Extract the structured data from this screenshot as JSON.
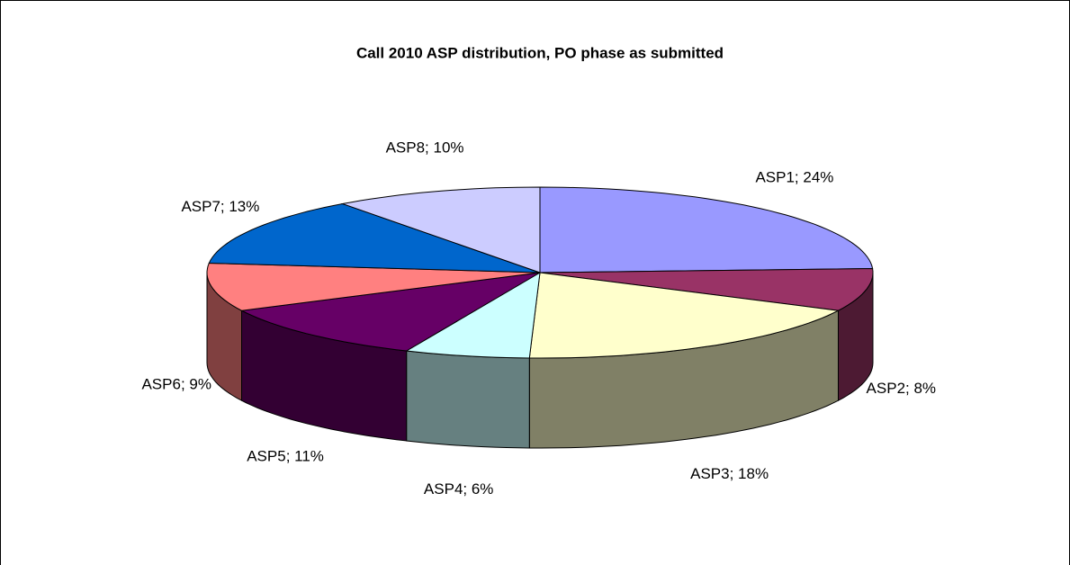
{
  "chart_data": {
    "type": "pie3d",
    "title": "Call 2010 ASP distribution, PO phase as submitted",
    "values": [
      24,
      8,
      18,
      6,
      11,
      9,
      13,
      10
    ],
    "value_labels": [
      "ASP1; 24%",
      "ASP2; 8%",
      "ASP3; 18%",
      "ASP4; 6%",
      "ASP5; 11%",
      "ASP6; 9%",
      "ASP7; 13%",
      "ASP8; 10%"
    ],
    "colors": [
      "#9999ff",
      "#993366",
      "#ffffcc",
      "#ccffff",
      "#660066",
      "#ff8080",
      "#0066cc",
      "#ccccff"
    ]
  }
}
